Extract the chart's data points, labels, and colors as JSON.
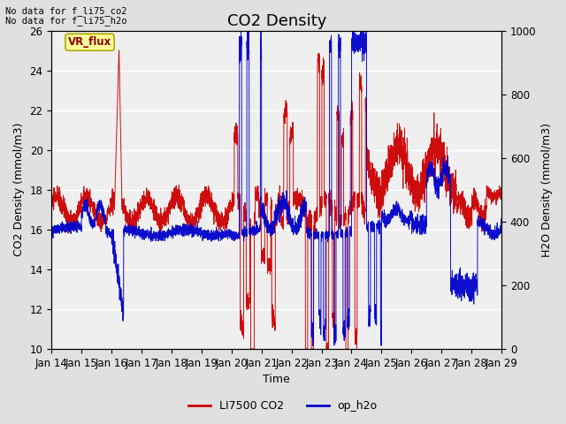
{
  "title": "CO2 Density",
  "xlabel": "Time",
  "ylabel_left": "CO2 Density (mmol/m3)",
  "ylabel_right": "H2O Density (mmol/m3)",
  "text_line1": "No data for f_li75_co2",
  "text_line2": "No data for f_li75_h2o",
  "vr_flux_label": "VR_flux",
  "ylim_left": [
    10,
    26
  ],
  "ylim_right": [
    0,
    1000
  ],
  "yticks_left": [
    10,
    12,
    14,
    16,
    18,
    20,
    22,
    24,
    26
  ],
  "yticks_right": [
    0,
    200,
    400,
    600,
    800,
    1000
  ],
  "xticklabels": [
    "Jan 14",
    "Jan 15",
    "Jan 16",
    "Jan 17",
    "Jan 18",
    "Jan 19",
    "Jan 20",
    "Jan 21",
    "Jan 22",
    "Jan 23",
    "Jan 24",
    "Jan 25",
    "Jan 26",
    "Jan 27",
    "Jan 28",
    "Jan 29"
  ],
  "legend_entries": [
    "LI7500 CO2",
    "op_h2o"
  ],
  "legend_colors": [
    "#cc0000",
    "#0000cc"
  ],
  "bg_color": "#e0e0e0",
  "plot_bg_color": "#efefef",
  "grid_color": "#ffffff",
  "title_fontsize": 13,
  "label_fontsize": 9,
  "tick_fontsize": 8.5
}
